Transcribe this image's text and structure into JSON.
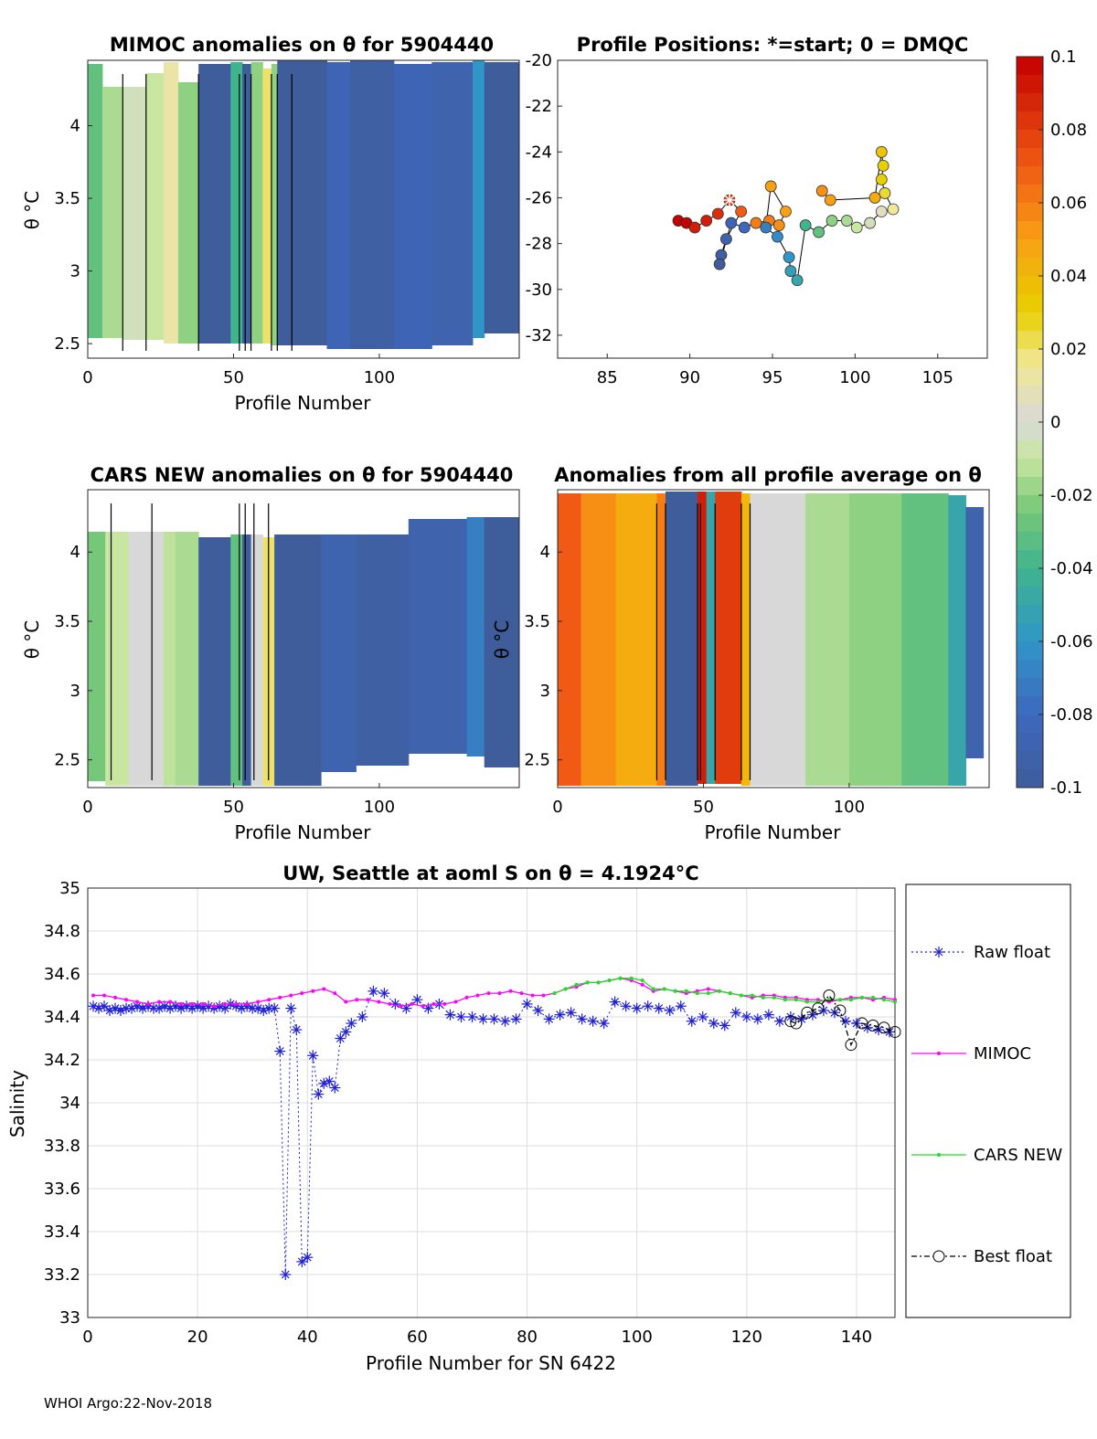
{
  "colors": {
    "raw_float": "#1f1fd6",
    "mimoc": "#ff00ff",
    "cars_new": "#22dd22",
    "best_float": "#000000",
    "grid": "#dddddd",
    "anomaly_background": "#3f5d9a"
  },
  "footer": "WHOI Argo:22-Nov-2018",
  "chart_data": [
    {
      "id": "mimoc-anomalies",
      "type": "heatmap",
      "title": "MIMOC anomalies on θ  for 5904440",
      "xlabel": "Profile Number",
      "ylabel": "θ °C",
      "xlim": [
        0,
        148
      ],
      "ylim": [
        2.4,
        4.45
      ],
      "xticks": [
        "0",
        "50",
        "100"
      ],
      "xtick_values": [
        0,
        50,
        100
      ],
      "yticks": [
        "2.5",
        "3",
        "3.5",
        "4"
      ],
      "ytick_values": [
        2.5,
        3,
        3.5,
        4
      ],
      "bands": [
        {
          "x0": 0,
          "x1": 5,
          "value": -0.03
        },
        {
          "x0": 5,
          "x1": 12,
          "value": -0.015
        },
        {
          "x0": 12,
          "x1": 20,
          "value": -0.005
        },
        {
          "x0": 20,
          "x1": 26,
          "value": -0.01
        },
        {
          "x0": 26,
          "x1": 31,
          "value": 0.012
        },
        {
          "x0": 31,
          "x1": 38,
          "value": -0.02
        },
        {
          "x0": 38,
          "x1": 49,
          "value": -0.1
        },
        {
          "x0": 49,
          "x1": 53,
          "value": -0.04
        },
        {
          "x0": 53,
          "x1": 56,
          "value": -0.1
        },
        {
          "x0": 56,
          "x1": 60,
          "value": -0.02
        },
        {
          "x0": 60,
          "x1": 63,
          "value": 0.02
        },
        {
          "x0": 63,
          "x1": 65,
          "value": -0.02
        },
        {
          "x0": 65,
          "x1": 82,
          "value": -0.1
        },
        {
          "x0": 82,
          "x1": 90,
          "value": -0.085
        },
        {
          "x0": 90,
          "x1": 105,
          "value": -0.095
        },
        {
          "x0": 105,
          "x1": 118,
          "value": -0.085
        },
        {
          "x0": 118,
          "x1": 132,
          "value": -0.09
        },
        {
          "x0": 132,
          "x1": 136,
          "value": -0.06
        },
        {
          "x0": 136,
          "x1": 148,
          "value": -0.1
        }
      ]
    },
    {
      "id": "profile-positions",
      "type": "scatter",
      "title": "Profile Positions: *=start; 0 = DMQC",
      "xlim": [
        82,
        108
      ],
      "ylim": [
        -33,
        -20
      ],
      "xticks": [
        "85",
        "90",
        "95",
        "100",
        "105"
      ],
      "xtick_values": [
        85,
        90,
        95,
        100,
        105
      ],
      "yticks": [
        "-20",
        "-22",
        "-24",
        "-26",
        "-28",
        "-30",
        "-32"
      ],
      "ytick_values": [
        -20,
        -22,
        -24,
        -26,
        -28,
        -30,
        -32
      ],
      "start": [
        92.4,
        -26.1
      ],
      "track": [
        [
          89.3,
          -27.0
        ],
        [
          89.8,
          -27.1
        ],
        [
          90.3,
          -27.3
        ],
        [
          91.0,
          -27.0
        ],
        [
          91.7,
          -26.7
        ],
        [
          92.4,
          -26.1
        ],
        [
          93.1,
          -26.6
        ],
        [
          92.2,
          -27.8
        ],
        [
          91.9,
          -28.5
        ],
        [
          91.8,
          -28.9
        ],
        [
          92.5,
          -27.1
        ],
        [
          93.3,
          -27.3
        ],
        [
          94.0,
          -27.1
        ],
        [
          94.8,
          -27.0
        ],
        [
          95.4,
          -27.2
        ],
        [
          95.8,
          -26.6
        ],
        [
          94.9,
          -25.5
        ],
        [
          94.6,
          -27.3
        ],
        [
          95.3,
          -27.7
        ],
        [
          96.0,
          -28.6
        ],
        [
          96.1,
          -29.2
        ],
        [
          96.5,
          -29.6
        ],
        [
          97.0,
          -27.2
        ],
        [
          97.8,
          -27.5
        ],
        [
          98.6,
          -27.0
        ],
        [
          99.5,
          -27.0
        ],
        [
          100.1,
          -27.3
        ],
        [
          100.9,
          -27.1
        ],
        [
          101.6,
          -26.6
        ],
        [
          102.3,
          -26.5
        ],
        [
          101.8,
          -25.8
        ],
        [
          101.6,
          -25.2
        ],
        [
          101.7,
          -24.6
        ],
        [
          101.6,
          -24.0
        ],
        [
          101.2,
          -26.0
        ],
        [
          98.5,
          -26.1
        ],
        [
          98.0,
          -25.7
        ]
      ],
      "values": [
        0.1,
        0.1,
        0.09,
        0.09,
        0.085,
        0.08,
        0.07,
        -0.09,
        -0.095,
        -0.1,
        -0.085,
        -0.08,
        0.06,
        0.06,
        0.055,
        0.05,
        0.05,
        -0.07,
        -0.065,
        -0.06,
        -0.055,
        -0.05,
        -0.04,
        -0.03,
        -0.02,
        -0.015,
        -0.01,
        -0.005,
        0.005,
        0.015,
        0.025,
        0.03,
        0.03,
        0.035,
        0.045,
        0.05,
        0.055
      ]
    },
    {
      "id": "cars-anomalies",
      "type": "heatmap",
      "title": "CARS NEW anomalies on θ for 5904440",
      "xlabel": "Profile Number",
      "ylabel": "θ °C",
      "xlim": [
        0,
        148
      ],
      "ylim": [
        2.3,
        4.45
      ],
      "xticks": [
        "0",
        "50",
        "100"
      ],
      "xtick_values": [
        0,
        50,
        100
      ],
      "yticks": [
        "2.5",
        "3",
        "3.5",
        "4"
      ],
      "ytick_values": [
        2.5,
        3,
        3.5,
        4
      ],
      "bands": [
        {
          "x0": 0,
          "x1": 6,
          "value": -0.025
        },
        {
          "x0": 6,
          "x1": 14,
          "value": -0.01
        },
        {
          "x0": 14,
          "x1": 26,
          "value": 0.0
        },
        {
          "x0": 26,
          "x1": 30,
          "value": -0.012
        },
        {
          "x0": 30,
          "x1": 38,
          "value": -0.015
        },
        {
          "x0": 38,
          "x1": 49,
          "value": -0.1
        },
        {
          "x0": 49,
          "x1": 53,
          "value": -0.03
        },
        {
          "x0": 53,
          "x1": 56,
          "value": -0.1
        },
        {
          "x0": 56,
          "x1": 60,
          "value": 0.0
        },
        {
          "x0": 60,
          "x1": 64,
          "value": 0.02
        },
        {
          "x0": 64,
          "x1": 80,
          "value": -0.1
        },
        {
          "x0": 80,
          "x1": 92,
          "value": -0.088
        },
        {
          "x0": 92,
          "x1": 110,
          "value": -0.095
        },
        {
          "x0": 110,
          "x1": 130,
          "value": -0.09
        },
        {
          "x0": 130,
          "x1": 136,
          "value": -0.07
        },
        {
          "x0": 136,
          "x1": 148,
          "value": -0.1
        }
      ]
    },
    {
      "id": "all-profile-anomalies",
      "type": "heatmap",
      "title": "Anomalies from all profile average on θ",
      "xlabel": "Profile Number",
      "ylabel": "θ °C",
      "xlim": [
        0,
        148
      ],
      "ylim": [
        2.3,
        4.45
      ],
      "xticks": [
        "0",
        "50",
        "100"
      ],
      "xtick_values": [
        0,
        50,
        100
      ],
      "yticks": [
        "2.5",
        "3",
        "3.5",
        "4"
      ],
      "ytick_values": [
        2.5,
        3,
        3.5,
        4
      ],
      "bands": [
        {
          "x0": 0,
          "x1": 8,
          "value": 0.07
        },
        {
          "x0": 8,
          "x1": 20,
          "value": 0.055
        },
        {
          "x0": 20,
          "x1": 34,
          "value": 0.045
        },
        {
          "x0": 34,
          "x1": 37,
          "value": 0.06
        },
        {
          "x0": 37,
          "x1": 48,
          "value": -0.1
        },
        {
          "x0": 48,
          "x1": 51,
          "value": 0.09
        },
        {
          "x0": 51,
          "x1": 54,
          "value": -0.05
        },
        {
          "x0": 54,
          "x1": 63,
          "value": 0.08
        },
        {
          "x0": 63,
          "x1": 66,
          "value": 0.04
        },
        {
          "x0": 66,
          "x1": 85,
          "value": 0.0
        },
        {
          "x0": 85,
          "x1": 100,
          "value": -0.015
        },
        {
          "x0": 100,
          "x1": 118,
          "value": -0.02
        },
        {
          "x0": 118,
          "x1": 134,
          "value": -0.03
        },
        {
          "x0": 134,
          "x1": 140,
          "value": -0.05
        },
        {
          "x0": 140,
          "x1": 146,
          "value": -0.09
        }
      ]
    },
    {
      "id": "salinity-series",
      "type": "line",
      "title": "UW, Seattle at aoml S on θ = 4.1924°C",
      "xlabel": "Profile Number for SN 6422",
      "ylabel": "Salinity",
      "xlim": [
        0,
        147
      ],
      "ylim": [
        33,
        35
      ],
      "xticks": [
        "0",
        "20",
        "40",
        "60",
        "80",
        "100",
        "120",
        "140"
      ],
      "xtick_values": [
        0,
        20,
        40,
        60,
        80,
        100,
        120,
        140
      ],
      "yticks": [
        "33",
        "33.2",
        "33.4",
        "33.6",
        "33.8",
        "34",
        "34.2",
        "34.4",
        "34.6",
        "34.8",
        "35"
      ],
      "ytick_values": [
        33,
        33.2,
        33.4,
        33.6,
        33.8,
        34,
        34.2,
        34.4,
        34.6,
        34.8,
        35
      ],
      "series": [
        {
          "name": "Raw float",
          "x": [
            1,
            2,
            3,
            4,
            5,
            6,
            7,
            8,
            9,
            10,
            11,
            12,
            13,
            14,
            15,
            16,
            17,
            18,
            19,
            20,
            21,
            22,
            23,
            24,
            25,
            26,
            27,
            28,
            29,
            30,
            31,
            32,
            33,
            34,
            35,
            36,
            37,
            38,
            39,
            40,
            41,
            42,
            43,
            44,
            45,
            46,
            47,
            48,
            50,
            52,
            54,
            56,
            58,
            60,
            62,
            64,
            66,
            68,
            70,
            72,
            74,
            76,
            78,
            80,
            82,
            84,
            86,
            88,
            90,
            92,
            94,
            96,
            98,
            100,
            102,
            104,
            106,
            108,
            110,
            112,
            114,
            116,
            118,
            120,
            122,
            124,
            126,
            128,
            130,
            132,
            134,
            136,
            138,
            140,
            142,
            144,
            146
          ],
          "y": [
            34.45,
            34.44,
            34.45,
            34.43,
            34.44,
            34.43,
            34.44,
            34.44,
            34.45,
            34.44,
            34.45,
            34.44,
            34.44,
            34.45,
            34.44,
            34.45,
            34.44,
            34.45,
            34.44,
            34.45,
            34.44,
            34.45,
            34.44,
            34.45,
            34.44,
            34.46,
            34.45,
            34.44,
            34.45,
            34.44,
            34.44,
            34.43,
            34.44,
            34.44,
            34.24,
            33.2,
            34.44,
            34.34,
            33.26,
            33.28,
            34.22,
            34.04,
            34.09,
            34.1,
            34.07,
            34.3,
            34.33,
            34.37,
            34.4,
            34.52,
            34.51,
            34.46,
            34.44,
            34.48,
            34.44,
            34.46,
            34.41,
            34.4,
            34.4,
            34.39,
            34.39,
            34.38,
            34.39,
            34.46,
            34.43,
            34.39,
            34.41,
            34.42,
            34.39,
            34.38,
            34.37,
            34.47,
            34.45,
            34.44,
            34.45,
            34.44,
            34.43,
            34.45,
            34.38,
            34.4,
            34.37,
            34.36,
            34.42,
            34.4,
            34.39,
            34.41,
            34.38,
            34.4,
            34.39,
            34.41,
            34.43,
            34.42,
            34.38,
            34.37,
            34.35,
            34.34,
            34.33
          ]
        },
        {
          "name": "MIMOC",
          "x": [
            1,
            3,
            5,
            7,
            9,
            11,
            13,
            15,
            17,
            19,
            21,
            23,
            25,
            27,
            29,
            31,
            33,
            35,
            37,
            39,
            41,
            43,
            45,
            47,
            49,
            51,
            53,
            55,
            57,
            59,
            61,
            63,
            65,
            67,
            69,
            71,
            73,
            75,
            77,
            79,
            81,
            83,
            85,
            87,
            89,
            91,
            93,
            95,
            97,
            99,
            101,
            103,
            105,
            107,
            109,
            111,
            113,
            115,
            117,
            119,
            121,
            123,
            125,
            127,
            129,
            131,
            133,
            135,
            137,
            139,
            141,
            143,
            145,
            147
          ],
          "y": [
            34.5,
            34.5,
            34.49,
            34.48,
            34.47,
            34.46,
            34.47,
            34.47,
            34.46,
            34.46,
            34.46,
            34.45,
            34.46,
            34.46,
            34.46,
            34.47,
            34.48,
            34.49,
            34.5,
            34.51,
            34.52,
            34.53,
            34.51,
            34.47,
            34.48,
            34.48,
            34.47,
            34.46,
            34.45,
            34.46,
            34.45,
            34.46,
            34.46,
            34.47,
            34.49,
            34.5,
            34.51,
            34.51,
            34.52,
            34.51,
            34.5,
            34.5,
            34.51,
            34.53,
            34.54,
            34.56,
            34.56,
            34.57,
            34.58,
            34.57,
            34.55,
            34.52,
            34.53,
            34.52,
            34.51,
            34.52,
            34.53,
            34.52,
            34.51,
            34.5,
            34.49,
            34.5,
            34.5,
            34.49,
            34.49,
            34.48,
            34.48,
            34.47,
            34.48,
            34.49,
            34.49,
            34.48,
            34.49,
            34.48
          ]
        },
        {
          "name": "CARS NEW",
          "x": [
            85,
            87,
            89,
            91,
            93,
            95,
            97,
            99,
            101,
            103,
            105,
            107,
            109,
            111,
            113,
            115,
            117,
            119,
            121,
            123,
            125,
            127,
            129,
            131,
            133,
            135,
            137,
            139,
            141,
            143,
            145,
            147
          ],
          "y": [
            34.51,
            34.53,
            34.55,
            34.56,
            34.56,
            34.57,
            34.58,
            34.58,
            34.57,
            34.53,
            34.53,
            34.52,
            34.52,
            34.51,
            34.51,
            34.52,
            34.51,
            34.5,
            34.5,
            34.49,
            34.49,
            34.48,
            34.48,
            34.47,
            34.47,
            34.48,
            34.48,
            34.48,
            34.49,
            34.49,
            34.48,
            34.47
          ]
        },
        {
          "name": "Best float",
          "x": [
            128,
            129,
            131,
            133,
            135,
            137,
            139,
            141,
            143,
            145,
            147
          ],
          "y": [
            34.38,
            34.37,
            34.42,
            34.44,
            34.5,
            34.43,
            34.27,
            34.37,
            34.36,
            34.35,
            34.33
          ]
        }
      ],
      "legend": [
        "Raw float",
        "MIMOC",
        "CARS NEW",
        "Best float"
      ]
    }
  ],
  "colorbar": {
    "ticks": [
      "0.1",
      "0.08",
      "0.06",
      "0.04",
      "0.02",
      "0",
      "-0.02",
      "-0.04",
      "-0.06",
      "-0.08",
      "-0.1"
    ],
    "tick_values": [
      0.1,
      0.08,
      0.06,
      0.04,
      0.02,
      0,
      -0.02,
      -0.04,
      -0.06,
      -0.08,
      -0.1
    ],
    "range": [
      -0.1,
      0.1
    ]
  }
}
